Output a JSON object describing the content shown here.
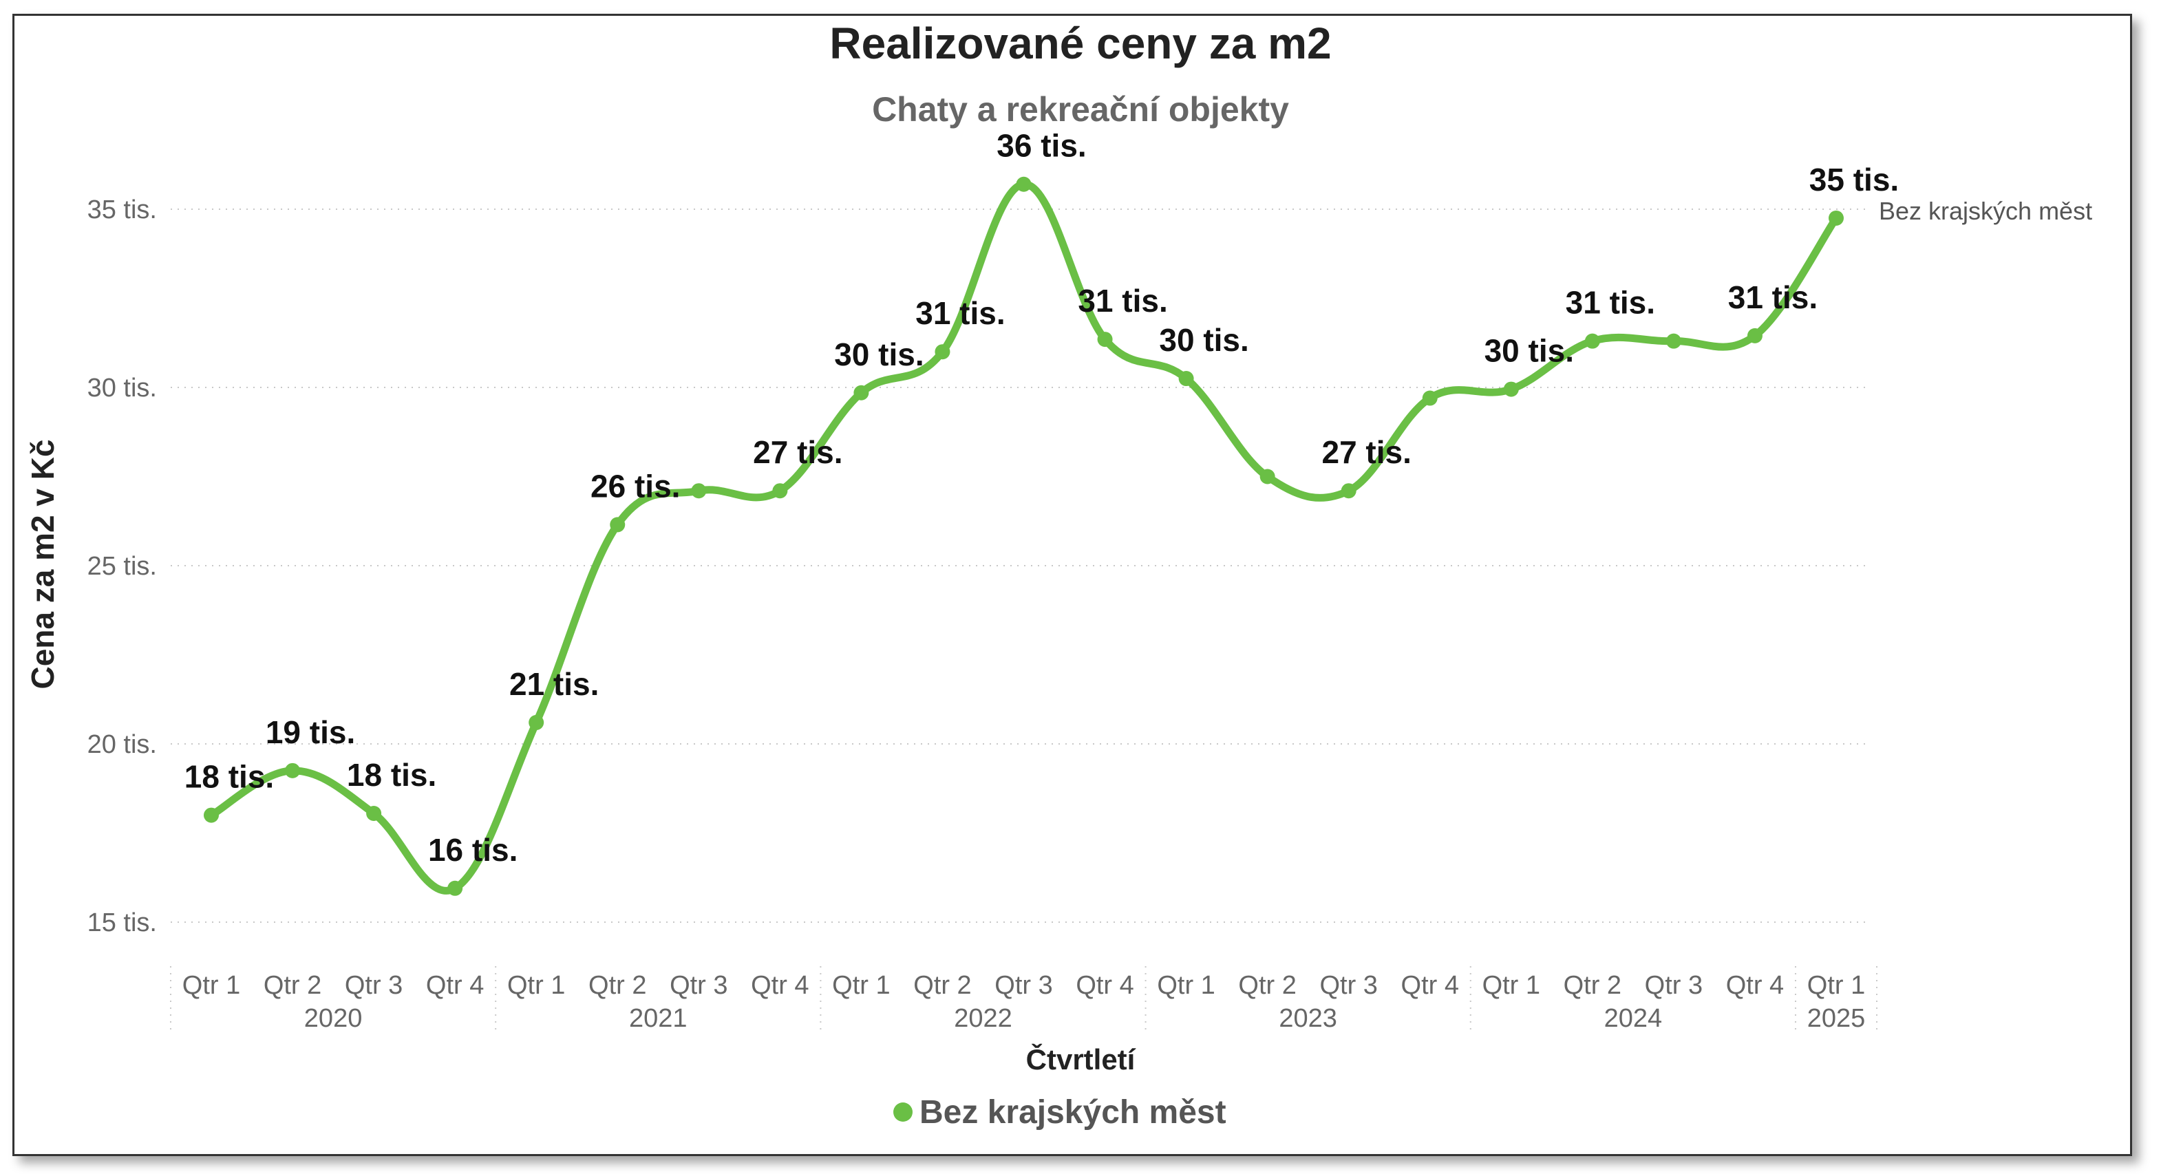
{
  "chart_data": {
    "type": "line",
    "title": "Realizované ceny za m2",
    "subtitle": "Chaty a rekreační objekty",
    "xlabel": "Čtvrtletí",
    "ylabel": "Cena za m2 v Kč",
    "ylim": [
      14500,
      36500
    ],
    "yticks": [
      {
        "value": 15000,
        "label": "15 tis."
      },
      {
        "value": 20000,
        "label": "20 tis."
      },
      {
        "value": 25000,
        "label": "25 tis."
      },
      {
        "value": 30000,
        "label": "30 tis."
      },
      {
        "value": 35000,
        "label": "35 tis."
      }
    ],
    "grid": true,
    "legend_position": "bottom",
    "color": "#6abf45",
    "years": [
      {
        "label": "2020",
        "quarters": [
          "Qtr 1",
          "Qtr 2",
          "Qtr 3",
          "Qtr 4"
        ]
      },
      {
        "label": "2021",
        "quarters": [
          "Qtr 1",
          "Qtr 2",
          "Qtr 3",
          "Qtr 4"
        ]
      },
      {
        "label": "2022",
        "quarters": [
          "Qtr 1",
          "Qtr 2",
          "Qtr 3",
          "Qtr 4"
        ]
      },
      {
        "label": "2023",
        "quarters": [
          "Qtr 1",
          "Qtr 2",
          "Qtr 3",
          "Qtr 4"
        ]
      },
      {
        "label": "2024",
        "quarters": [
          "Qtr 1",
          "Qtr 2",
          "Qtr 3",
          "Qtr 4"
        ]
      },
      {
        "label": "2025",
        "quarters": [
          "Qtr 1"
        ]
      }
    ],
    "series": [
      {
        "name": "Bez krajských měst",
        "values": [
          18000,
          19250,
          18050,
          15950,
          20600,
          26150,
          27100,
          27100,
          29850,
          31000,
          35700,
          31350,
          30250,
          27500,
          27100,
          29700,
          29950,
          31300,
          31300,
          31450,
          34750
        ],
        "labels": [
          "18 tis.",
          "19 tis.",
          "18 tis.",
          "16 tis.",
          "21 tis.",
          "26 tis.",
          "27 tis.",
          "27 tis.",
          "30 tis.",
          "31 tis.",
          "36 tis.",
          "31 tis.",
          "30 tis.",
          "27 tis.",
          "27 tis.",
          "30 tis.",
          "30 tis.",
          "31 tis.",
          "31 tis.",
          "31 tis.",
          "35 tis."
        ],
        "label_shown": [
          true,
          true,
          true,
          true,
          true,
          true,
          false,
          true,
          true,
          true,
          true,
          true,
          true,
          false,
          true,
          false,
          true,
          true,
          false,
          true,
          true
        ]
      }
    ]
  }
}
